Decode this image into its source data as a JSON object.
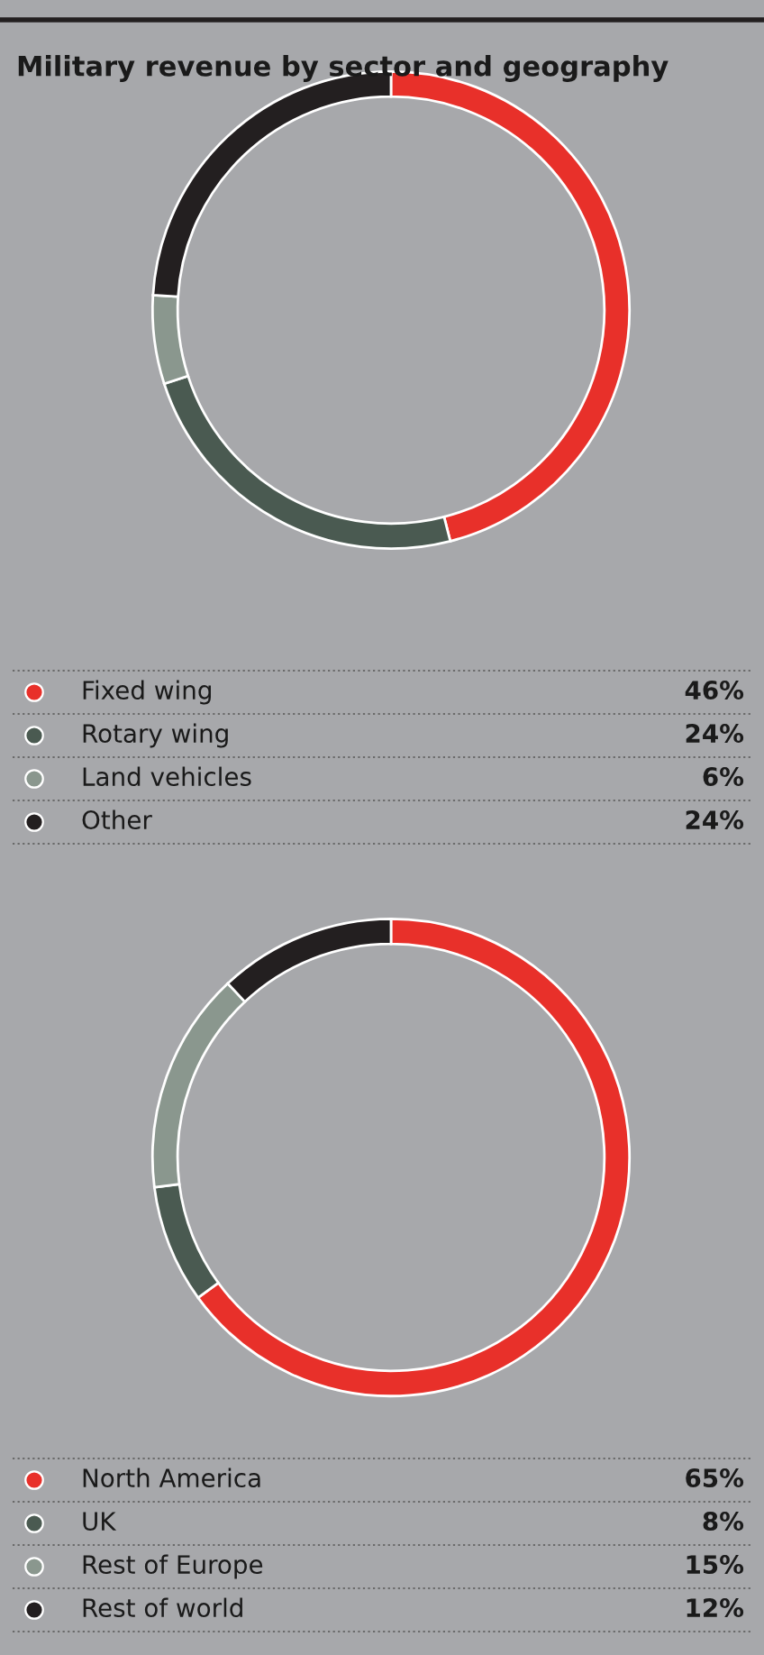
{
  "chart_data": [
    {
      "type": "donut",
      "title": "Military revenue by sector and geography",
      "categories": [
        "Fixed wing",
        "Rotary wing",
        "Land vehicles",
        "Other"
      ],
      "values": [
        46,
        24,
        6,
        24
      ],
      "colors": [
        "#e8302a",
        "#4a5a51",
        "#8a978e",
        "#231f20"
      ],
      "value_labels": [
        "46%",
        "24%",
        "6%",
        "24%"
      ],
      "legend": "bottom"
    },
    {
      "type": "donut",
      "categories": [
        "North America",
        "UK",
        "Rest of Europe",
        "Rest of world"
      ],
      "values": [
        65,
        8,
        15,
        12
      ],
      "colors": [
        "#e8302a",
        "#4a5a51",
        "#8a978e",
        "#231f20"
      ],
      "value_labels": [
        "65%",
        "8%",
        "15%",
        "12%"
      ],
      "legend": "bottom"
    }
  ]
}
